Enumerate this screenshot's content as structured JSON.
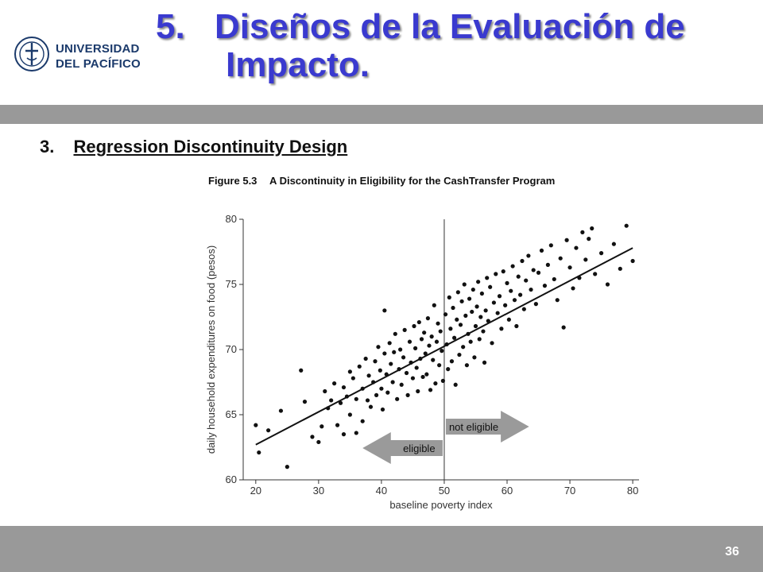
{
  "header": {
    "logo_line1": "UNIVERSIDAD",
    "logo_line2": "DEL PACÍFICO",
    "title_number": "5.",
    "title_line1": "Diseños de la Evaluación de",
    "title_line2": "Impacto."
  },
  "subtitle": {
    "number": "3.",
    "text": "Regression Discontinuity Design"
  },
  "figure": {
    "label": "Figure 5.3",
    "title": "A Discontinuity in Eligibility for the CashTransfer Program"
  },
  "colors": {
    "title": "#3a3acf",
    "bars": "#999999",
    "logo": "#1b3a6b",
    "arrow": "#9a9a9a"
  },
  "chart_data": {
    "type": "scatter",
    "xlabel": "baseline poverty index",
    "ylabel": "daily household expenditures on food (pesos)",
    "xlim": [
      18,
      81
    ],
    "ylim": [
      60,
      80
    ],
    "xticks": [
      20,
      30,
      40,
      50,
      60,
      70,
      80
    ],
    "yticks": [
      60,
      65,
      70,
      75,
      80
    ],
    "cutoff": 50,
    "regression_line": {
      "x": [
        20,
        80
      ],
      "y": [
        62.7,
        77.8
      ]
    },
    "annotations": {
      "left_arrow": "eligible",
      "right_arrow": "not eligible"
    },
    "points": [
      [
        20,
        64.2
      ],
      [
        20.5,
        62.1
      ],
      [
        22,
        63.8
      ],
      [
        24,
        65.3
      ],
      [
        25,
        61
      ],
      [
        27.2,
        68.4
      ],
      [
        27.8,
        66
      ],
      [
        29,
        63.3
      ],
      [
        30,
        62.9
      ],
      [
        30.5,
        64.1
      ],
      [
        31,
        66.8
      ],
      [
        31.5,
        65.5
      ],
      [
        32,
        66.1
      ],
      [
        32.5,
        67.4
      ],
      [
        33,
        64.2
      ],
      [
        33.5,
        65.9
      ],
      [
        34,
        67.1
      ],
      [
        34,
        63.5
      ],
      [
        34.5,
        66.4
      ],
      [
        35,
        68.3
      ],
      [
        35,
        65
      ],
      [
        35.5,
        67.8
      ],
      [
        36,
        66.2
      ],
      [
        36,
        63.6
      ],
      [
        36.5,
        68.7
      ],
      [
        37,
        67
      ],
      [
        37,
        64.5
      ],
      [
        37.5,
        69.3
      ],
      [
        37.8,
        66.1
      ],
      [
        38,
        68
      ],
      [
        38.3,
        65.6
      ],
      [
        38.7,
        67.5
      ],
      [
        39,
        69.1
      ],
      [
        39.2,
        66.5
      ],
      [
        39.5,
        70.2
      ],
      [
        39.8,
        68.4
      ],
      [
        40,
        67
      ],
      [
        40.2,
        65.4
      ],
      [
        40.5,
        69.7
      ],
      [
        40.5,
        73
      ],
      [
        40.8,
        68.1
      ],
      [
        41,
        66.7
      ],
      [
        41.3,
        70.5
      ],
      [
        41.5,
        68.9
      ],
      [
        41.8,
        67.5
      ],
      [
        42,
        69.8
      ],
      [
        42.2,
        71.2
      ],
      [
        42.5,
        66.2
      ],
      [
        42.8,
        68.5
      ],
      [
        43,
        70
      ],
      [
        43.2,
        67.3
      ],
      [
        43.5,
        69.4
      ],
      [
        43.7,
        71.5
      ],
      [
        44,
        68.2
      ],
      [
        44.2,
        66.5
      ],
      [
        44.5,
        70.6
      ],
      [
        44.7,
        69
      ],
      [
        45,
        67.8
      ],
      [
        45.2,
        71.8
      ],
      [
        45.4,
        70.1
      ],
      [
        45.6,
        68.6
      ],
      [
        45.8,
        66.8
      ],
      [
        46,
        72.1
      ],
      [
        46.2,
        69.3
      ],
      [
        46.4,
        70.8
      ],
      [
        46.6,
        67.9
      ],
      [
        46.8,
        71.3
      ],
      [
        47,
        69.7
      ],
      [
        47.2,
        68.1
      ],
      [
        47.4,
        72.4
      ],
      [
        47.6,
        70.3
      ],
      [
        47.8,
        66.9
      ],
      [
        48,
        71
      ],
      [
        48.2,
        69.2
      ],
      [
        48.4,
        73.4
      ],
      [
        48.6,
        67.4
      ],
      [
        48.8,
        70.6
      ],
      [
        49,
        72
      ],
      [
        49.2,
        68.8
      ],
      [
        49.4,
        71.4
      ],
      [
        49.6,
        69.9
      ],
      [
        49.8,
        67.6
      ],
      [
        50.2,
        72.7
      ],
      [
        50.4,
        70.4
      ],
      [
        50.6,
        68.5
      ],
      [
        50.8,
        74
      ],
      [
        51,
        71.6
      ],
      [
        51.2,
        69.1
      ],
      [
        51.4,
        73.2
      ],
      [
        51.6,
        70.9
      ],
      [
        51.8,
        67.3
      ],
      [
        52,
        72.3
      ],
      [
        52.2,
        74.4
      ],
      [
        52.4,
        69.6
      ],
      [
        52.6,
        71.9
      ],
      [
        52.8,
        73.7
      ],
      [
        53,
        70.2
      ],
      [
        53.2,
        75
      ],
      [
        53.4,
        72.6
      ],
      [
        53.6,
        68.8
      ],
      [
        53.8,
        71.2
      ],
      [
        54,
        73.9
      ],
      [
        54.2,
        70.6
      ],
      [
        54.4,
        72.9
      ],
      [
        54.6,
        74.6
      ],
      [
        54.8,
        69.4
      ],
      [
        55,
        71.8
      ],
      [
        55.2,
        73.3
      ],
      [
        55.4,
        75.2
      ],
      [
        55.6,
        70.8
      ],
      [
        55.8,
        72.5
      ],
      [
        56,
        74.3
      ],
      [
        56.2,
        71.4
      ],
      [
        56.4,
        69
      ],
      [
        56.6,
        73
      ],
      [
        56.8,
        75.5
      ],
      [
        57,
        72.2
      ],
      [
        57.3,
        74.8
      ],
      [
        57.6,
        70.5
      ],
      [
        57.9,
        73.6
      ],
      [
        58.2,
        75.8
      ],
      [
        58.5,
        72.8
      ],
      [
        58.8,
        74.1
      ],
      [
        59.1,
        71.6
      ],
      [
        59.4,
        76
      ],
      [
        59.7,
        73.4
      ],
      [
        60,
        75.1
      ],
      [
        60.3,
        72.3
      ],
      [
        60.6,
        74.5
      ],
      [
        60.9,
        76.4
      ],
      [
        61.2,
        73.8
      ],
      [
        61.5,
        71.8
      ],
      [
        61.8,
        75.6
      ],
      [
        62.1,
        74.2
      ],
      [
        62.4,
        76.8
      ],
      [
        62.7,
        73.1
      ],
      [
        63,
        75.3
      ],
      [
        63.4,
        77.2
      ],
      [
        63.8,
        74.6
      ],
      [
        64.2,
        76.1
      ],
      [
        64.6,
        73.5
      ],
      [
        65,
        75.9
      ],
      [
        65.5,
        77.6
      ],
      [
        66,
        74.9
      ],
      [
        66.5,
        76.5
      ],
      [
        67,
        78
      ],
      [
        67.5,
        75.4
      ],
      [
        68,
        73.8
      ],
      [
        68.5,
        77
      ],
      [
        69,
        71.7
      ],
      [
        69.5,
        78.4
      ],
      [
        70,
        76.3
      ],
      [
        70.5,
        74.7
      ],
      [
        71,
        77.8
      ],
      [
        71.5,
        75.5
      ],
      [
        72,
        79
      ],
      [
        72.5,
        76.9
      ],
      [
        73,
        78.5
      ],
      [
        73.5,
        79.3
      ],
      [
        74,
        75.8
      ],
      [
        75,
        77.4
      ],
      [
        76,
        75
      ],
      [
        77,
        78.1
      ],
      [
        78,
        76.2
      ],
      [
        79,
        79.5
      ],
      [
        80,
        76.8
      ]
    ]
  },
  "footer": {
    "page_number": "36"
  }
}
